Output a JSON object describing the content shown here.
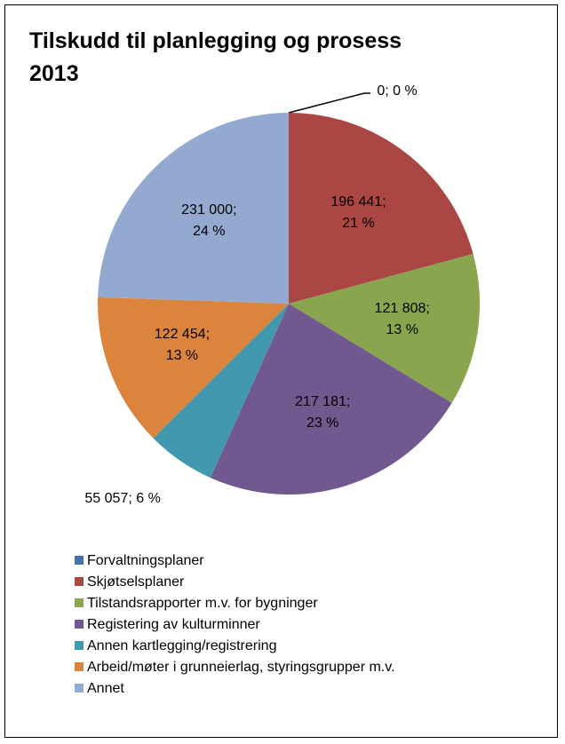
{
  "chart_data": {
    "type": "pie",
    "title": "Tilskudd til planlegging og prosess 2013",
    "categories": [
      "Forvaltningsplaner",
      "Skjøtselsplaner",
      "Tilstandsrapporter m.v. for bygninger",
      "Registering av kulturminner",
      "Annen kartlegging/registrering",
      "Arbeid/møter i grunneierlag, styringsgrupper m.v.",
      "Annet"
    ],
    "values": [
      0,
      196441,
      121808,
      217181,
      55057,
      122454,
      231000
    ],
    "value_labels": [
      "0; 0 %",
      "196 441; 21 %",
      "121 808; 13 %",
      "217 181; 23 %",
      "55 057; 6 %",
      "122 454; 13 %",
      "231 000; 24 %"
    ],
    "colors": [
      "#4572a7",
      "#aa4643",
      "#89a54e",
      "#71588f",
      "#4198af",
      "#db843d",
      "#93a9cf"
    ],
    "legend": "bottom"
  }
}
